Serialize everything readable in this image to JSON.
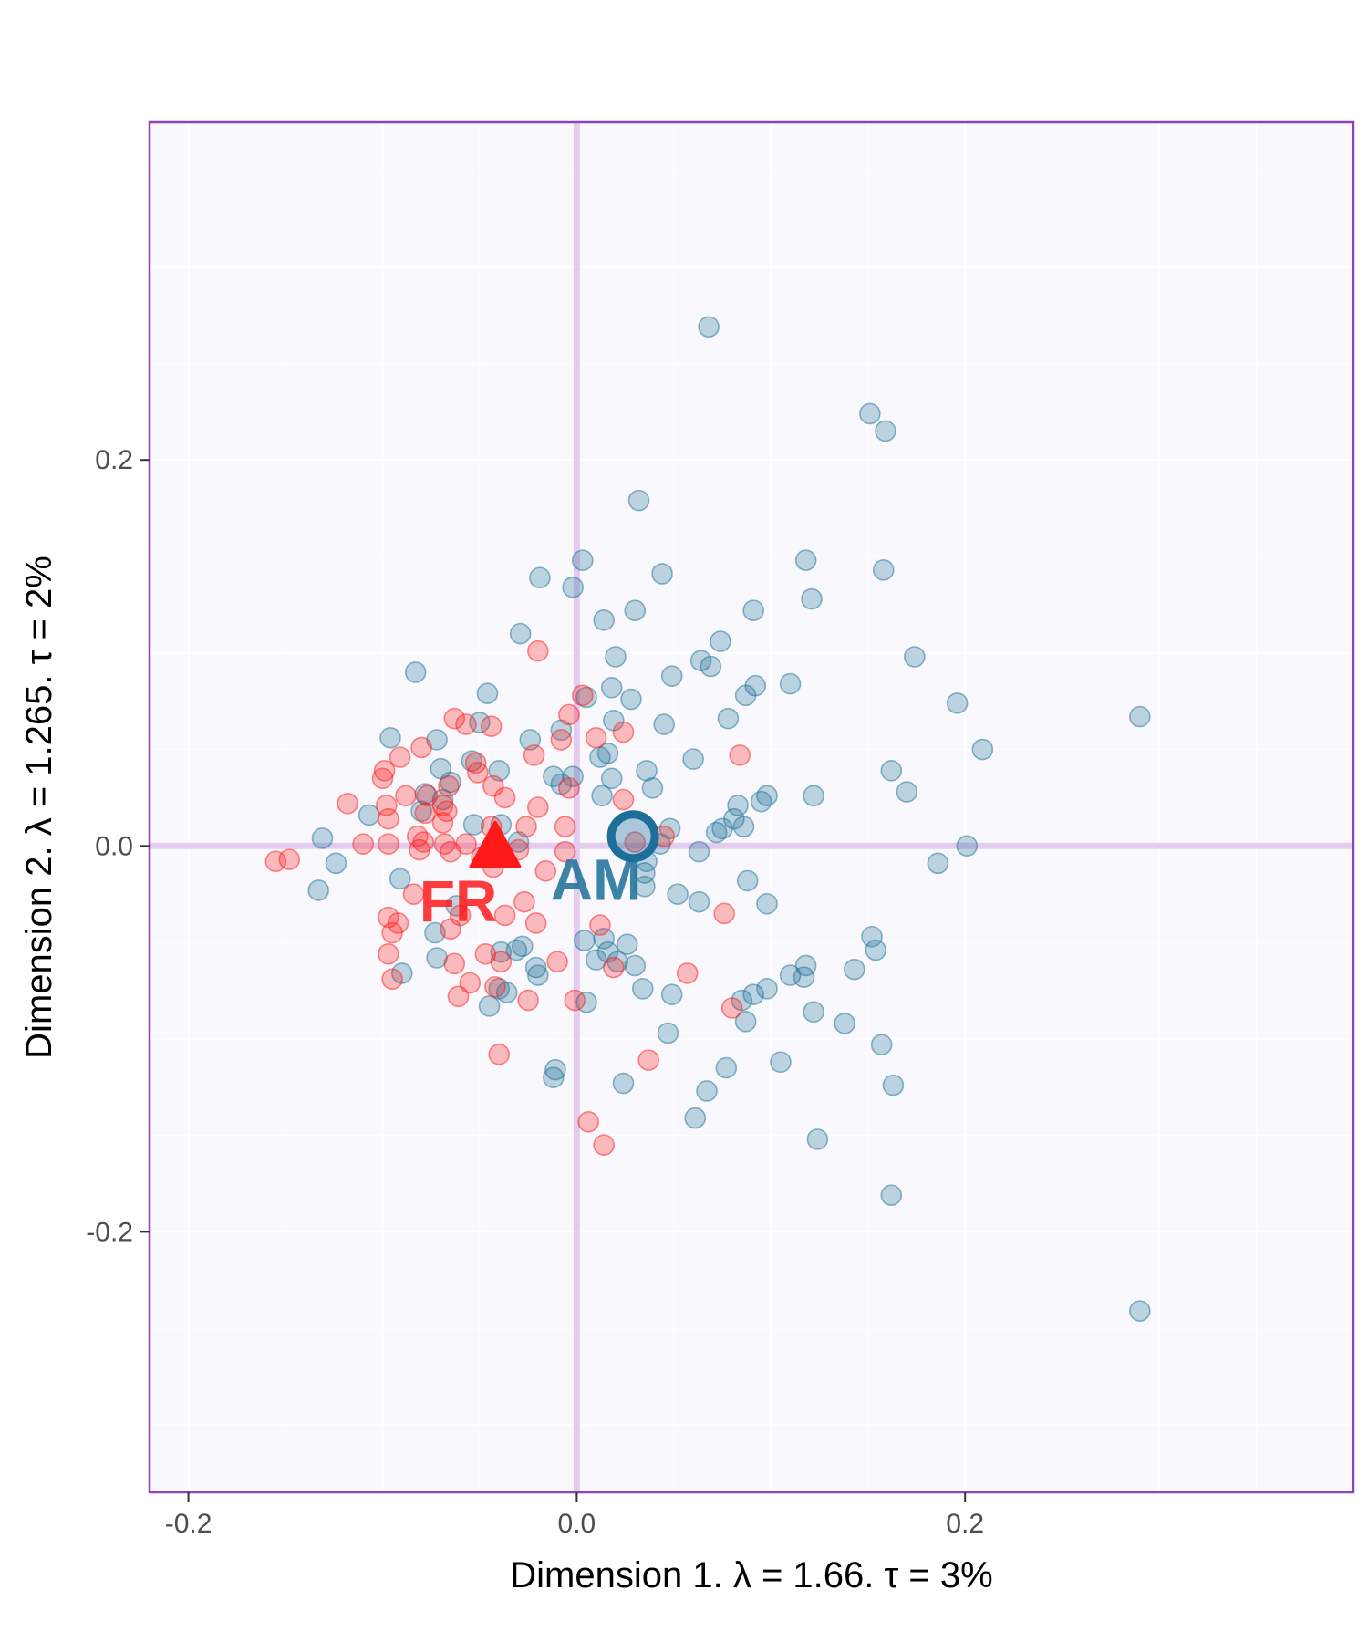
{
  "chart_data": {
    "type": "scatter",
    "xlabel": "Dimension 1.   λ = 1.66.  τ = 3%",
    "ylabel": "Dimension 2.   λ = 1.265.  τ = 2%",
    "xlim": [
      -0.22,
      0.4
    ],
    "ylim": [
      -0.335,
      0.375
    ],
    "x_ticks": [
      {
        "value": -0.2,
        "label": "-0.2"
      },
      {
        "value": 0.0,
        "label": "0.0"
      },
      {
        "value": 0.2,
        "label": "0.2"
      }
    ],
    "y_ticks": [
      {
        "value": -0.2,
        "label": "-0.2"
      },
      {
        "value": 0.0,
        "label": "0.0"
      },
      {
        "value": 0.2,
        "label": "0.2"
      }
    ],
    "grid": true,
    "colors": {
      "panel_background": "#f9f8fd",
      "panel_border": "#8e44b8",
      "origin_lines": "#e3ccf0",
      "grid": "#ffffff",
      "tick_text": "#4d4d4d"
    },
    "series": [
      {
        "name": "AM",
        "color": "#1b6f98",
        "marker": "circle",
        "centroid": {
          "x": 0.029,
          "y": 0.005,
          "label": "AM",
          "label_x": 0.01,
          "label_y": -0.02
        },
        "points": [
          {
            "x": 0.068,
            "y": 0.269
          },
          {
            "x": 0.151,
            "y": 0.224
          },
          {
            "x": 0.159,
            "y": 0.215
          },
          {
            "x": 0.032,
            "y": 0.179
          },
          {
            "x": 0.003,
            "y": 0.148
          },
          {
            "x": 0.118,
            "y": 0.148
          },
          {
            "x": 0.158,
            "y": 0.143
          },
          {
            "x": 0.044,
            "y": 0.141
          },
          {
            "x": -0.019,
            "y": 0.139
          },
          {
            "x": -0.002,
            "y": 0.134
          },
          {
            "x": 0.121,
            "y": 0.128
          },
          {
            "x": 0.03,
            "y": 0.122
          },
          {
            "x": 0.091,
            "y": 0.122
          },
          {
            "x": 0.014,
            "y": 0.117
          },
          {
            "x": -0.029,
            "y": 0.11
          },
          {
            "x": 0.074,
            "y": 0.106
          },
          {
            "x": 0.02,
            "y": 0.098
          },
          {
            "x": 0.174,
            "y": 0.098
          },
          {
            "x": 0.064,
            "y": 0.096
          },
          {
            "x": 0.069,
            "y": 0.093
          },
          {
            "x": -0.083,
            "y": 0.09
          },
          {
            "x": 0.049,
            "y": 0.088
          },
          {
            "x": 0.11,
            "y": 0.084
          },
          {
            "x": 0.092,
            "y": 0.083
          },
          {
            "x": 0.018,
            "y": 0.082
          },
          {
            "x": 0.087,
            "y": 0.078
          },
          {
            "x": 0.005,
            "y": 0.077
          },
          {
            "x": 0.028,
            "y": 0.076
          },
          {
            "x": 0.196,
            "y": 0.074
          },
          {
            "x": -0.046,
            "y": 0.079
          },
          {
            "x": 0.29,
            "y": 0.067
          },
          {
            "x": 0.078,
            "y": 0.066
          },
          {
            "x": 0.019,
            "y": 0.065
          },
          {
            "x": 0.045,
            "y": 0.063
          },
          {
            "x": -0.05,
            "y": 0.064
          },
          {
            "x": -0.008,
            "y": 0.06
          },
          {
            "x": -0.096,
            "y": 0.056
          },
          {
            "x": -0.072,
            "y": 0.055
          },
          {
            "x": -0.024,
            "y": 0.055
          },
          {
            "x": 0.209,
            "y": 0.05
          },
          {
            "x": 0.016,
            "y": 0.048
          },
          {
            "x": 0.012,
            "y": 0.046
          },
          {
            "x": -0.054,
            "y": 0.044
          },
          {
            "x": 0.06,
            "y": 0.045
          },
          {
            "x": -0.04,
            "y": 0.039
          },
          {
            "x": 0.036,
            "y": 0.039
          },
          {
            "x": 0.162,
            "y": 0.039
          },
          {
            "x": -0.07,
            "y": 0.04
          },
          {
            "x": -0.012,
            "y": 0.036
          },
          {
            "x": 0.018,
            "y": 0.035
          },
          {
            "x": -0.002,
            "y": 0.036
          },
          {
            "x": -0.065,
            "y": 0.033
          },
          {
            "x": -0.008,
            "y": 0.032
          },
          {
            "x": 0.039,
            "y": 0.03
          },
          {
            "x": 0.17,
            "y": 0.028
          },
          {
            "x": -0.078,
            "y": 0.027
          },
          {
            "x": 0.098,
            "y": 0.026
          },
          {
            "x": 0.122,
            "y": 0.026
          },
          {
            "x": 0.013,
            "y": 0.026
          },
          {
            "x": -0.069,
            "y": 0.024
          },
          {
            "x": 0.095,
            "y": 0.023
          },
          {
            "x": 0.083,
            "y": 0.021
          },
          {
            "x": -0.08,
            "y": 0.018
          },
          {
            "x": -0.107,
            "y": 0.016
          },
          {
            "x": 0.081,
            "y": 0.014
          },
          {
            "x": -0.039,
            "y": 0.011
          },
          {
            "x": -0.053,
            "y": 0.011
          },
          {
            "x": 0.086,
            "y": 0.01
          },
          {
            "x": 0.048,
            "y": 0.009
          },
          {
            "x": 0.075,
            "y": 0.009
          },
          {
            "x": 0.072,
            "y": 0.007
          },
          {
            "x": -0.131,
            "y": 0.004
          },
          {
            "x": 0.201,
            "y": 0.0
          },
          {
            "x": 0.043,
            "y": 0.001
          },
          {
            "x": -0.03,
            "y": 0.002
          },
          {
            "x": 0.063,
            "y": -0.003
          },
          {
            "x": 0.036,
            "y": -0.008
          },
          {
            "x": -0.124,
            "y": -0.009
          },
          {
            "x": 0.186,
            "y": -0.009
          },
          {
            "x": 0.035,
            "y": -0.014
          },
          {
            "x": -0.091,
            "y": -0.017
          },
          {
            "x": 0.088,
            "y": -0.018
          },
          {
            "x": 0.035,
            "y": -0.021
          },
          {
            "x": -0.133,
            "y": -0.023
          },
          {
            "x": 0.052,
            "y": -0.025
          },
          {
            "x": 0.063,
            "y": -0.029
          },
          {
            "x": 0.098,
            "y": -0.03
          },
          {
            "x": -0.062,
            "y": -0.031
          },
          {
            "x": -0.073,
            "y": -0.045
          },
          {
            "x": 0.152,
            "y": -0.047
          },
          {
            "x": 0.004,
            "y": -0.049
          },
          {
            "x": 0.014,
            "y": -0.048
          },
          {
            "x": 0.026,
            "y": -0.051
          },
          {
            "x": -0.028,
            "y": -0.052
          },
          {
            "x": 0.154,
            "y": -0.054
          },
          {
            "x": 0.016,
            "y": -0.055
          },
          {
            "x": -0.039,
            "y": -0.055
          },
          {
            "x": -0.031,
            "y": -0.054
          },
          {
            "x": -0.072,
            "y": -0.058
          },
          {
            "x": 0.01,
            "y": -0.059
          },
          {
            "x": 0.021,
            "y": -0.06
          },
          {
            "x": 0.03,
            "y": -0.062
          },
          {
            "x": -0.021,
            "y": -0.063
          },
          {
            "x": 0.118,
            "y": -0.062
          },
          {
            "x": 0.143,
            "y": -0.064
          },
          {
            "x": -0.09,
            "y": -0.066
          },
          {
            "x": -0.02,
            "y": -0.067
          },
          {
            "x": 0.11,
            "y": -0.067
          },
          {
            "x": 0.117,
            "y": -0.068
          },
          {
            "x": 0.034,
            "y": -0.074
          },
          {
            "x": 0.098,
            "y": -0.074
          },
          {
            "x": -0.04,
            "y": -0.074
          },
          {
            "x": -0.036,
            "y": -0.076
          },
          {
            "x": 0.049,
            "y": -0.077
          },
          {
            "x": 0.091,
            "y": -0.077
          },
          {
            "x": 0.085,
            "y": -0.08
          },
          {
            "x": 0.005,
            "y": -0.081
          },
          {
            "x": -0.045,
            "y": -0.083
          },
          {
            "x": 0.122,
            "y": -0.086
          },
          {
            "x": 0.087,
            "y": -0.091
          },
          {
            "x": 0.138,
            "y": -0.092
          },
          {
            "x": 0.047,
            "y": -0.097
          },
          {
            "x": 0.157,
            "y": -0.103
          },
          {
            "x": 0.105,
            "y": -0.112
          },
          {
            "x": 0.077,
            "y": -0.115
          },
          {
            "x": -0.011,
            "y": -0.116
          },
          {
            "x": -0.012,
            "y": -0.12
          },
          {
            "x": 0.024,
            "y": -0.123
          },
          {
            "x": 0.163,
            "y": -0.124
          },
          {
            "x": 0.067,
            "y": -0.127
          },
          {
            "x": 0.061,
            "y": -0.141
          },
          {
            "x": 0.124,
            "y": -0.152
          },
          {
            "x": 0.162,
            "y": -0.181
          },
          {
            "x": 0.29,
            "y": -0.241
          }
        ]
      },
      {
        "name": "FR",
        "color": "#ff1a1a",
        "marker": "triangle",
        "centroid": {
          "x": -0.042,
          "y": -0.002,
          "label": "FR",
          "label_x": -0.061,
          "label_y": -0.031
        },
        "points": [
          {
            "x": -0.02,
            "y": 0.101
          },
          {
            "x": -0.063,
            "y": 0.066
          },
          {
            "x": -0.057,
            "y": 0.063
          },
          {
            "x": -0.044,
            "y": 0.062
          },
          {
            "x": -0.004,
            "y": 0.068
          },
          {
            "x": 0.003,
            "y": 0.078
          },
          {
            "x": 0.024,
            "y": 0.059
          },
          {
            "x": 0.01,
            "y": 0.056
          },
          {
            "x": -0.008,
            "y": 0.055
          },
          {
            "x": -0.08,
            "y": 0.051
          },
          {
            "x": -0.091,
            "y": 0.046
          },
          {
            "x": -0.022,
            "y": 0.047
          },
          {
            "x": 0.084,
            "y": 0.047
          },
          {
            "x": -0.052,
            "y": 0.043
          },
          {
            "x": -0.051,
            "y": 0.038
          },
          {
            "x": -0.099,
            "y": 0.039
          },
          {
            "x": -0.1,
            "y": 0.035
          },
          {
            "x": -0.043,
            "y": 0.031
          },
          {
            "x": -0.066,
            "y": 0.031
          },
          {
            "x": -0.004,
            "y": 0.03
          },
          {
            "x": -0.088,
            "y": 0.026
          },
          {
            "x": -0.077,
            "y": 0.026
          },
          {
            "x": -0.037,
            "y": 0.025
          },
          {
            "x": 0.024,
            "y": 0.024
          },
          {
            "x": -0.118,
            "y": 0.022
          },
          {
            "x": -0.069,
            "y": 0.021
          },
          {
            "x": -0.098,
            "y": 0.021
          },
          {
            "x": -0.02,
            "y": 0.02
          },
          {
            "x": -0.067,
            "y": 0.018
          },
          {
            "x": -0.078,
            "y": 0.017
          },
          {
            "x": -0.097,
            "y": 0.014
          },
          {
            "x": -0.069,
            "y": 0.012
          },
          {
            "x": -0.044,
            "y": 0.01
          },
          {
            "x": -0.026,
            "y": 0.01
          },
          {
            "x": -0.006,
            "y": 0.01
          },
          {
            "x": -0.082,
            "y": 0.005
          },
          {
            "x": -0.079,
            "y": 0.002
          },
          {
            "x": -0.068,
            "y": 0.001
          },
          {
            "x": 0.03,
            "y": 0.002
          },
          {
            "x": 0.045,
            "y": 0.005
          },
          {
            "x": -0.11,
            "y": 0.001
          },
          {
            "x": -0.097,
            "y": 0.001
          },
          {
            "x": -0.057,
            "y": 0.001
          },
          {
            "x": -0.081,
            "y": -0.002
          },
          {
            "x": -0.065,
            "y": -0.003
          },
          {
            "x": -0.03,
            "y": -0.002
          },
          {
            "x": -0.006,
            "y": -0.003
          },
          {
            "x": -0.049,
            "y": -0.006
          },
          {
            "x": -0.155,
            "y": -0.008
          },
          {
            "x": -0.148,
            "y": -0.007
          },
          {
            "x": -0.043,
            "y": -0.011
          },
          {
            "x": -0.016,
            "y": -0.013
          },
          {
            "x": -0.084,
            "y": -0.025
          },
          {
            "x": -0.027,
            "y": -0.029
          },
          {
            "x": 0.076,
            "y": -0.035
          },
          {
            "x": -0.06,
            "y": -0.036
          },
          {
            "x": -0.037,
            "y": -0.036
          },
          {
            "x": -0.097,
            "y": -0.037
          },
          {
            "x": -0.092,
            "y": -0.04
          },
          {
            "x": -0.021,
            "y": -0.04
          },
          {
            "x": -0.065,
            "y": -0.043
          },
          {
            "x": 0.012,
            "y": -0.041
          },
          {
            "x": -0.095,
            "y": -0.045
          },
          {
            "x": -0.097,
            "y": -0.056
          },
          {
            "x": -0.047,
            "y": -0.056
          },
          {
            "x": -0.039,
            "y": -0.06
          },
          {
            "x": -0.063,
            "y": -0.061
          },
          {
            "x": -0.01,
            "y": -0.06
          },
          {
            "x": 0.019,
            "y": -0.063
          },
          {
            "x": 0.057,
            "y": -0.066
          },
          {
            "x": -0.095,
            "y": -0.069
          },
          {
            "x": -0.055,
            "y": -0.071
          },
          {
            "x": -0.042,
            "y": -0.073
          },
          {
            "x": -0.061,
            "y": -0.078
          },
          {
            "x": -0.025,
            "y": -0.08
          },
          {
            "x": -0.001,
            "y": -0.08
          },
          {
            "x": 0.08,
            "y": -0.084
          },
          {
            "x": -0.04,
            "y": -0.108
          },
          {
            "x": 0.037,
            "y": -0.111
          },
          {
            "x": 0.006,
            "y": -0.143
          },
          {
            "x": 0.014,
            "y": -0.155
          }
        ]
      }
    ]
  }
}
